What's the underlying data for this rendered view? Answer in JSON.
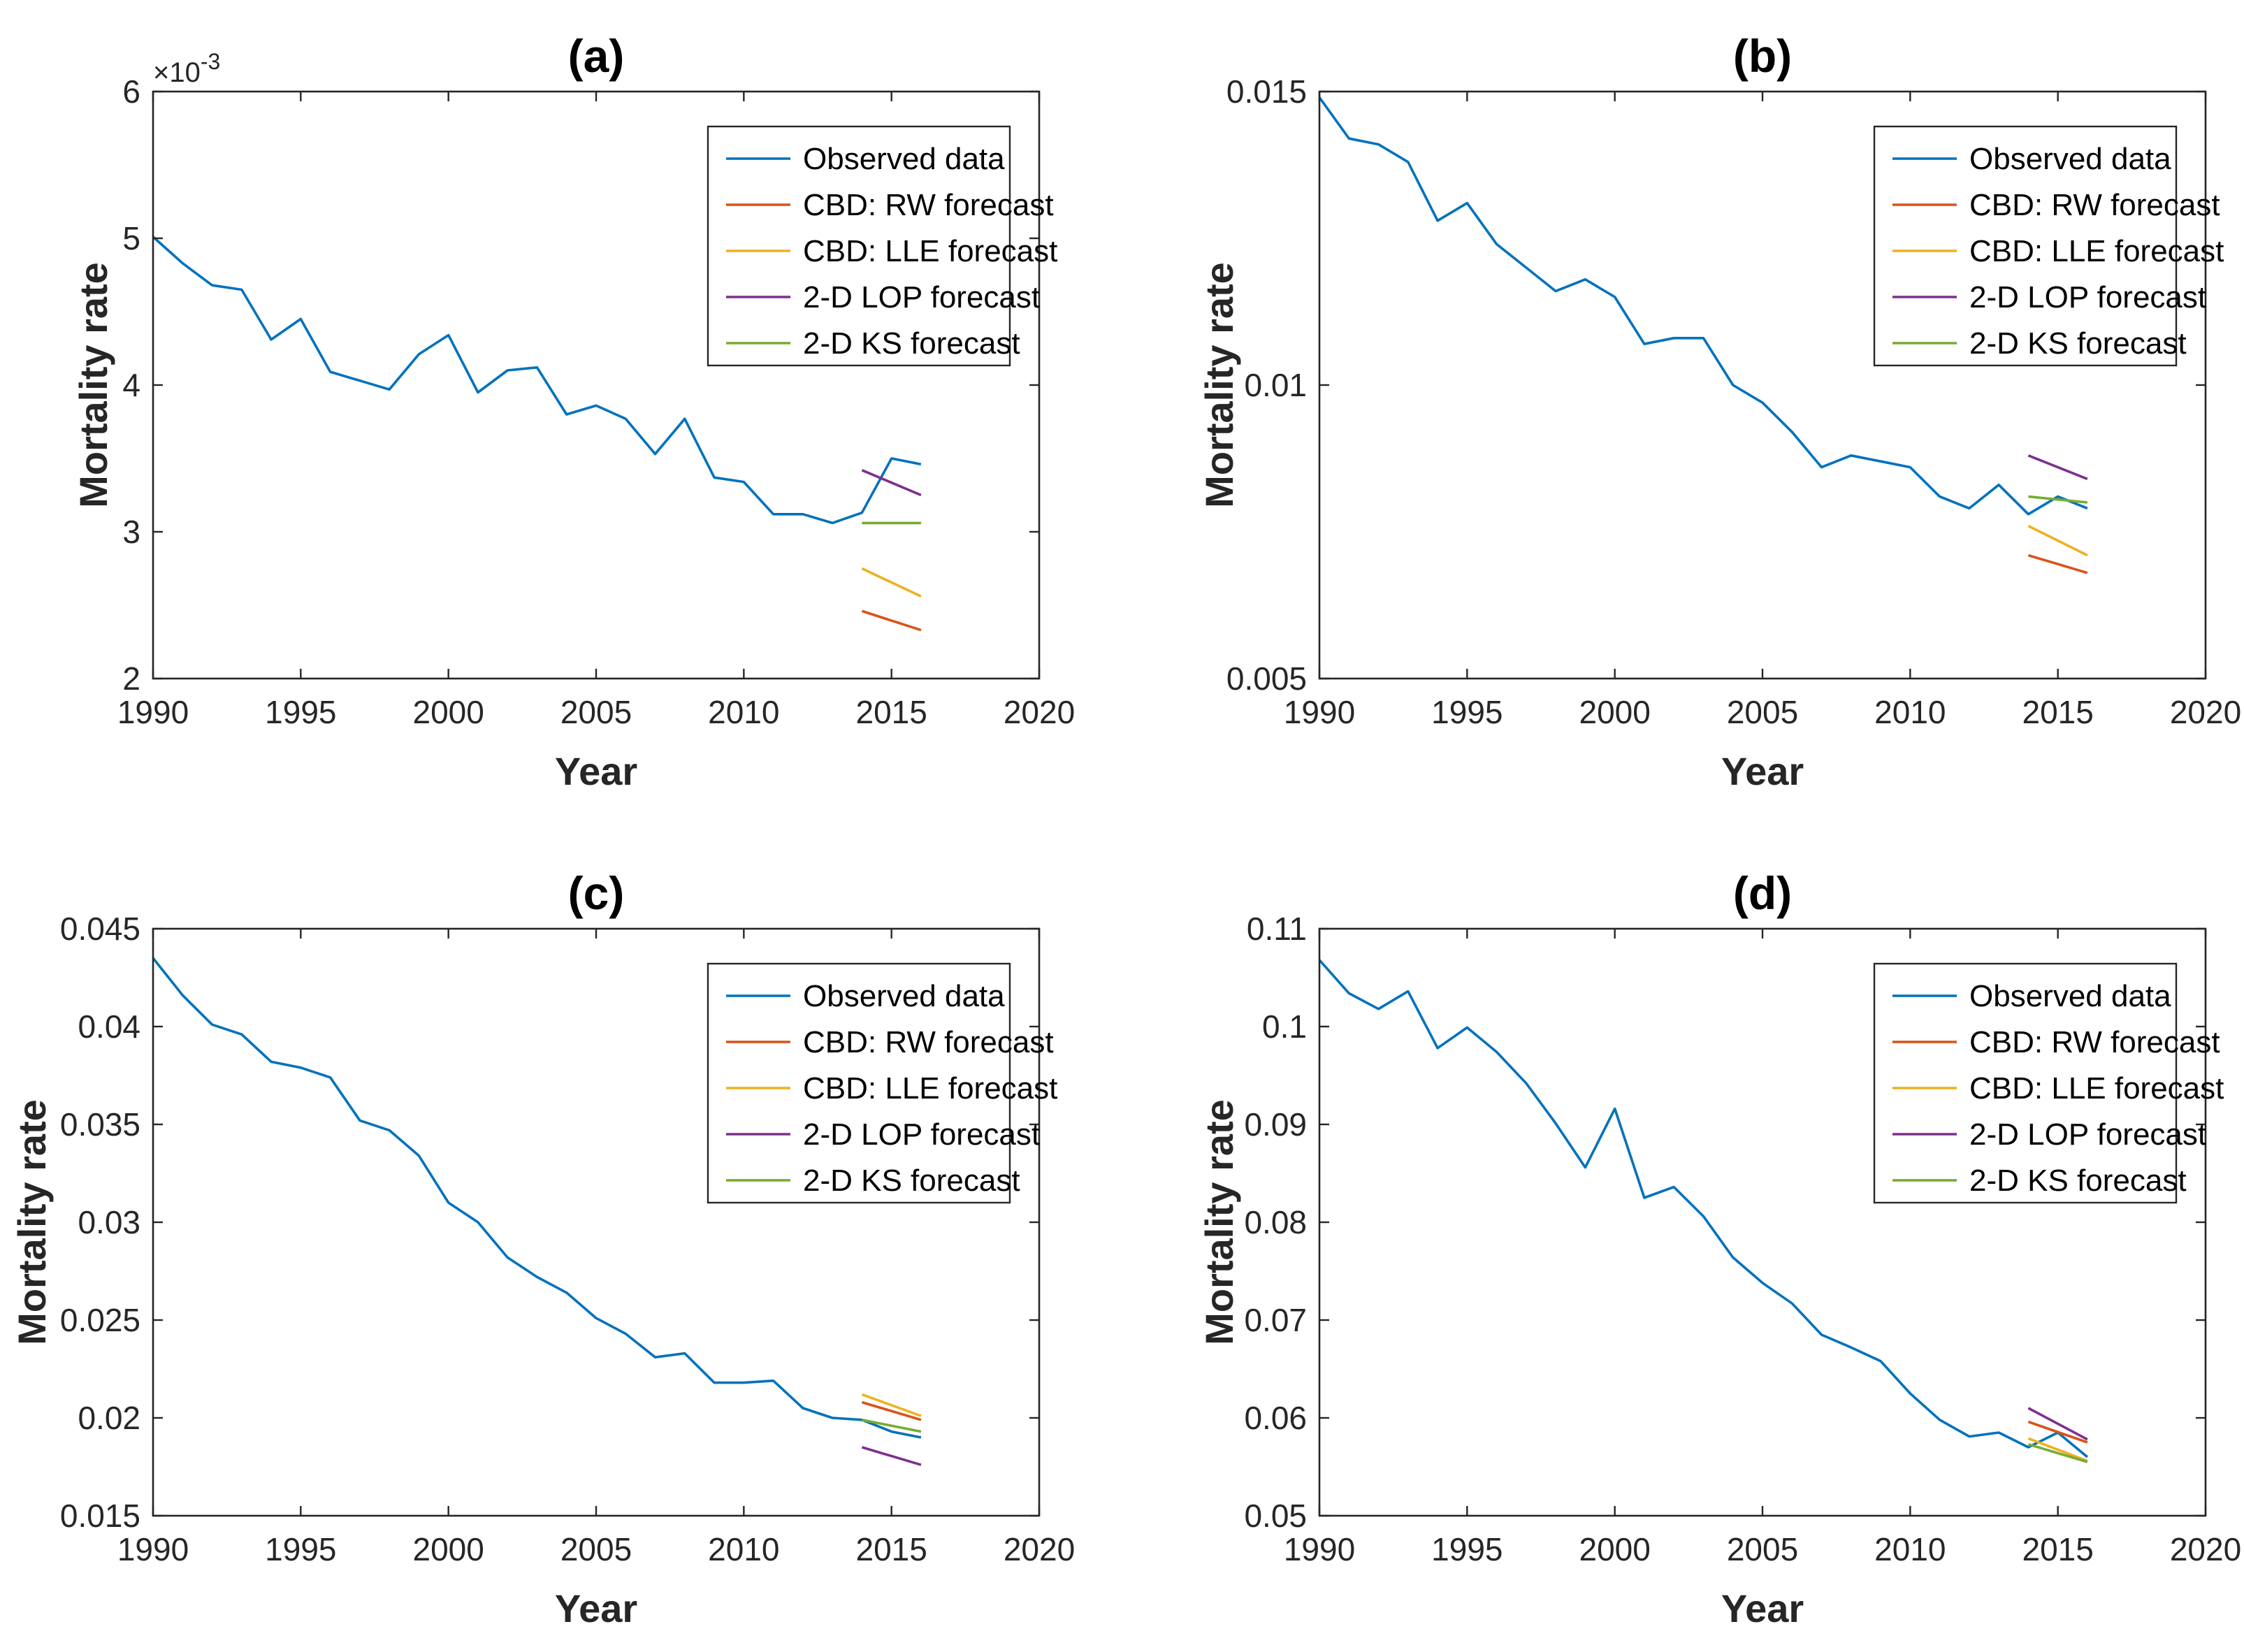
{
  "chart_data": [
    {
      "type": "line",
      "title": "(a)",
      "xlabel": "Year",
      "ylabel": "Mortality rate",
      "xlim": [
        1990,
        2020
      ],
      "ylim": [
        2,
        6
      ],
      "xticks": [
        1990,
        1995,
        2000,
        2005,
        2010,
        2015,
        2020
      ],
      "xtick_labels": [
        "1990",
        "1995",
        "2000",
        "2005",
        "2010",
        "2015",
        "2020"
      ],
      "yticks": [
        2,
        3,
        4,
        5,
        6
      ],
      "ytick_labels": [
        "2",
        "3",
        "4",
        "5",
        "6"
      ],
      "y_exponent_label": "×10",
      "y_exponent_power": "-3",
      "legend_position": "top-right",
      "grid": false,
      "series": [
        {
          "name": "Observed data",
          "color": "#0072BD",
          "x": [
            1990,
            1991,
            1992,
            1993,
            1994,
            1995,
            1996,
            1997,
            1998,
            1999,
            2000,
            2001,
            2002,
            2003,
            2004,
            2005,
            2006,
            2007,
            2008,
            2009,
            2010,
            2011,
            2012,
            2013,
            2014,
            2015,
            2016
          ],
          "y": [
            5.01,
            4.83,
            4.68,
            4.65,
            4.31,
            4.45,
            4.09,
            4.03,
            3.97,
            4.21,
            4.34,
            3.95,
            4.1,
            4.12,
            3.8,
            3.86,
            3.77,
            3.53,
            3.77,
            3.37,
            3.34,
            3.12,
            3.12,
            3.06,
            3.13,
            3.5,
            3.46
          ]
        },
        {
          "name": "CBD: RW forecast",
          "color": "#D95319",
          "x": [
            2014,
            2016
          ],
          "y": [
            2.46,
            2.33
          ]
        },
        {
          "name": "CBD: LLE forecast",
          "color": "#EDB120",
          "x": [
            2014,
            2016
          ],
          "y": [
            2.75,
            2.56
          ]
        },
        {
          "name": "2-D LOP forecast",
          "color": "#7E2F8E",
          "x": [
            2014,
            2016
          ],
          "y": [
            3.42,
            3.25
          ]
        },
        {
          "name": "2-D KS forecast",
          "color": "#77AC30",
          "x": [
            2014,
            2016
          ],
          "y": [
            3.06,
            3.06
          ]
        }
      ]
    },
    {
      "type": "line",
      "title": "(b)",
      "xlabel": "Year",
      "ylabel": "Mortality rate",
      "xlim": [
        1990,
        2020
      ],
      "ylim": [
        0.005,
        0.015
      ],
      "xticks": [
        1990,
        1995,
        2000,
        2005,
        2010,
        2015,
        2020
      ],
      "xtick_labels": [
        "1990",
        "1995",
        "2000",
        "2005",
        "2010",
        "2015",
        "2020"
      ],
      "yticks": [
        0.005,
        0.01,
        0.015
      ],
      "ytick_labels": [
        "0.005",
        "0.01",
        "0.015"
      ],
      "legend_position": "top-right",
      "grid": false,
      "series": [
        {
          "name": "Observed data",
          "color": "#0072BD",
          "x": [
            1990,
            1991,
            1992,
            1993,
            1994,
            1995,
            1996,
            1997,
            1998,
            1999,
            2000,
            2001,
            2002,
            2003,
            2004,
            2005,
            2006,
            2007,
            2008,
            2009,
            2010,
            2011,
            2012,
            2013,
            2014,
            2015,
            2016
          ],
          "y": [
            0.0149,
            0.0142,
            0.0141,
            0.0138,
            0.0128,
            0.0131,
            0.0124,
            0.012,
            0.0116,
            0.0118,
            0.0115,
            0.0107,
            0.0108,
            0.0108,
            0.01,
            0.0097,
            0.0092,
            0.0086,
            0.0088,
            0.0087,
            0.0086,
            0.0081,
            0.0079,
            0.0083,
            0.0078,
            0.0081,
            0.0079
          ]
        },
        {
          "name": "CBD: RW forecast",
          "color": "#D95319",
          "x": [
            2014,
            2016
          ],
          "y": [
            0.0071,
            0.0068
          ]
        },
        {
          "name": "CBD: LLE forecast",
          "color": "#EDB120",
          "x": [
            2014,
            2016
          ],
          "y": [
            0.0076,
            0.0071
          ]
        },
        {
          "name": "2-D LOP forecast",
          "color": "#7E2F8E",
          "x": [
            2014,
            2016
          ],
          "y": [
            0.0088,
            0.0084
          ]
        },
        {
          "name": "2-D KS forecast",
          "color": "#77AC30",
          "x": [
            2014,
            2016
          ],
          "y": [
            0.0081,
            0.008
          ]
        }
      ]
    },
    {
      "type": "line",
      "title": "(c)",
      "xlabel": "Year",
      "ylabel": "Mortality rate",
      "xlim": [
        1990,
        2020
      ],
      "ylim": [
        0.015,
        0.045
      ],
      "xticks": [
        1990,
        1995,
        2000,
        2005,
        2010,
        2015,
        2020
      ],
      "xtick_labels": [
        "1990",
        "1995",
        "2000",
        "2005",
        "2010",
        "2015",
        "2020"
      ],
      "yticks": [
        0.015,
        0.02,
        0.025,
        0.03,
        0.035,
        0.04,
        0.045
      ],
      "ytick_labels": [
        "0.015",
        "0.02",
        "0.025",
        "0.03",
        "0.035",
        "0.04",
        "0.045"
      ],
      "legend_position": "top-right",
      "grid": false,
      "series": [
        {
          "name": "Observed data",
          "color": "#0072BD",
          "x": [
            1990,
            1991,
            1992,
            1993,
            1994,
            1995,
            1996,
            1997,
            1998,
            1999,
            2000,
            2001,
            2002,
            2003,
            2004,
            2005,
            2006,
            2007,
            2008,
            2009,
            2010,
            2011,
            2012,
            2013,
            2014,
            2015,
            2016
          ],
          "y": [
            0.0435,
            0.0416,
            0.0401,
            0.0396,
            0.0382,
            0.0379,
            0.0374,
            0.0352,
            0.0347,
            0.0334,
            0.031,
            0.03,
            0.0282,
            0.0272,
            0.0264,
            0.0251,
            0.0243,
            0.0231,
            0.0233,
            0.0218,
            0.0218,
            0.0219,
            0.0205,
            0.02,
            0.0199,
            0.0193,
            0.019
          ]
        },
        {
          "name": "CBD: RW forecast",
          "color": "#D95319",
          "x": [
            2014,
            2016
          ],
          "y": [
            0.0208,
            0.0199
          ]
        },
        {
          "name": "CBD: LLE forecast",
          "color": "#EDB120",
          "x": [
            2014,
            2016
          ],
          "y": [
            0.0212,
            0.0201
          ]
        },
        {
          "name": "2-D LOP forecast",
          "color": "#7E2F8E",
          "x": [
            2014,
            2016
          ],
          "y": [
            0.0185,
            0.0176
          ]
        },
        {
          "name": "2-D KS forecast",
          "color": "#77AC30",
          "x": [
            2014,
            2016
          ],
          "y": [
            0.0199,
            0.0193
          ]
        }
      ]
    },
    {
      "type": "line",
      "title": "(d)",
      "xlabel": "Year",
      "ylabel": "Mortality rate",
      "xlim": [
        1990,
        2020
      ],
      "ylim": [
        0.05,
        0.11
      ],
      "xticks": [
        1990,
        1995,
        2000,
        2005,
        2010,
        2015,
        2020
      ],
      "xtick_labels": [
        "1990",
        "1995",
        "2000",
        "2005",
        "2010",
        "2015",
        "2020"
      ],
      "yticks": [
        0.05,
        0.06,
        0.07,
        0.08,
        0.09,
        0.1,
        0.11
      ],
      "ytick_labels": [
        "0.05",
        "0.06",
        "0.07",
        "0.08",
        "0.09",
        "0.1",
        "0.11"
      ],
      "legend_position": "top-right",
      "grid": false,
      "series": [
        {
          "name": "Observed data",
          "color": "#0072BD",
          "x": [
            1990,
            1991,
            1992,
            1993,
            1994,
            1995,
            1996,
            1997,
            1998,
            1999,
            2000,
            2001,
            2002,
            2003,
            2004,
            2005,
            2006,
            2007,
            2008,
            2009,
            2010,
            2011,
            2012,
            2013,
            2014,
            2015,
            2016
          ],
          "y": [
            0.1068,
            0.1034,
            0.1018,
            0.1036,
            0.0978,
            0.0999,
            0.0974,
            0.0942,
            0.0901,
            0.0856,
            0.0916,
            0.0825,
            0.0836,
            0.0806,
            0.0764,
            0.0738,
            0.0717,
            0.0685,
            0.0672,
            0.0658,
            0.0625,
            0.0598,
            0.0581,
            0.0585,
            0.057,
            0.0585,
            0.056
          ]
        },
        {
          "name": "CBD: RW forecast",
          "color": "#D95319",
          "x": [
            2014,
            2016
          ],
          "y": [
            0.0596,
            0.0575
          ]
        },
        {
          "name": "CBD: LLE forecast",
          "color": "#EDB120",
          "x": [
            2014,
            2016
          ],
          "y": [
            0.0579,
            0.0556
          ]
        },
        {
          "name": "2-D LOP forecast",
          "color": "#7E2F8E",
          "x": [
            2014,
            2016
          ],
          "y": [
            0.061,
            0.0578
          ]
        },
        {
          "name": "2-D KS forecast",
          "color": "#77AC30",
          "x": [
            2014,
            2016
          ],
          "y": [
            0.0573,
            0.0555
          ]
        }
      ]
    }
  ]
}
